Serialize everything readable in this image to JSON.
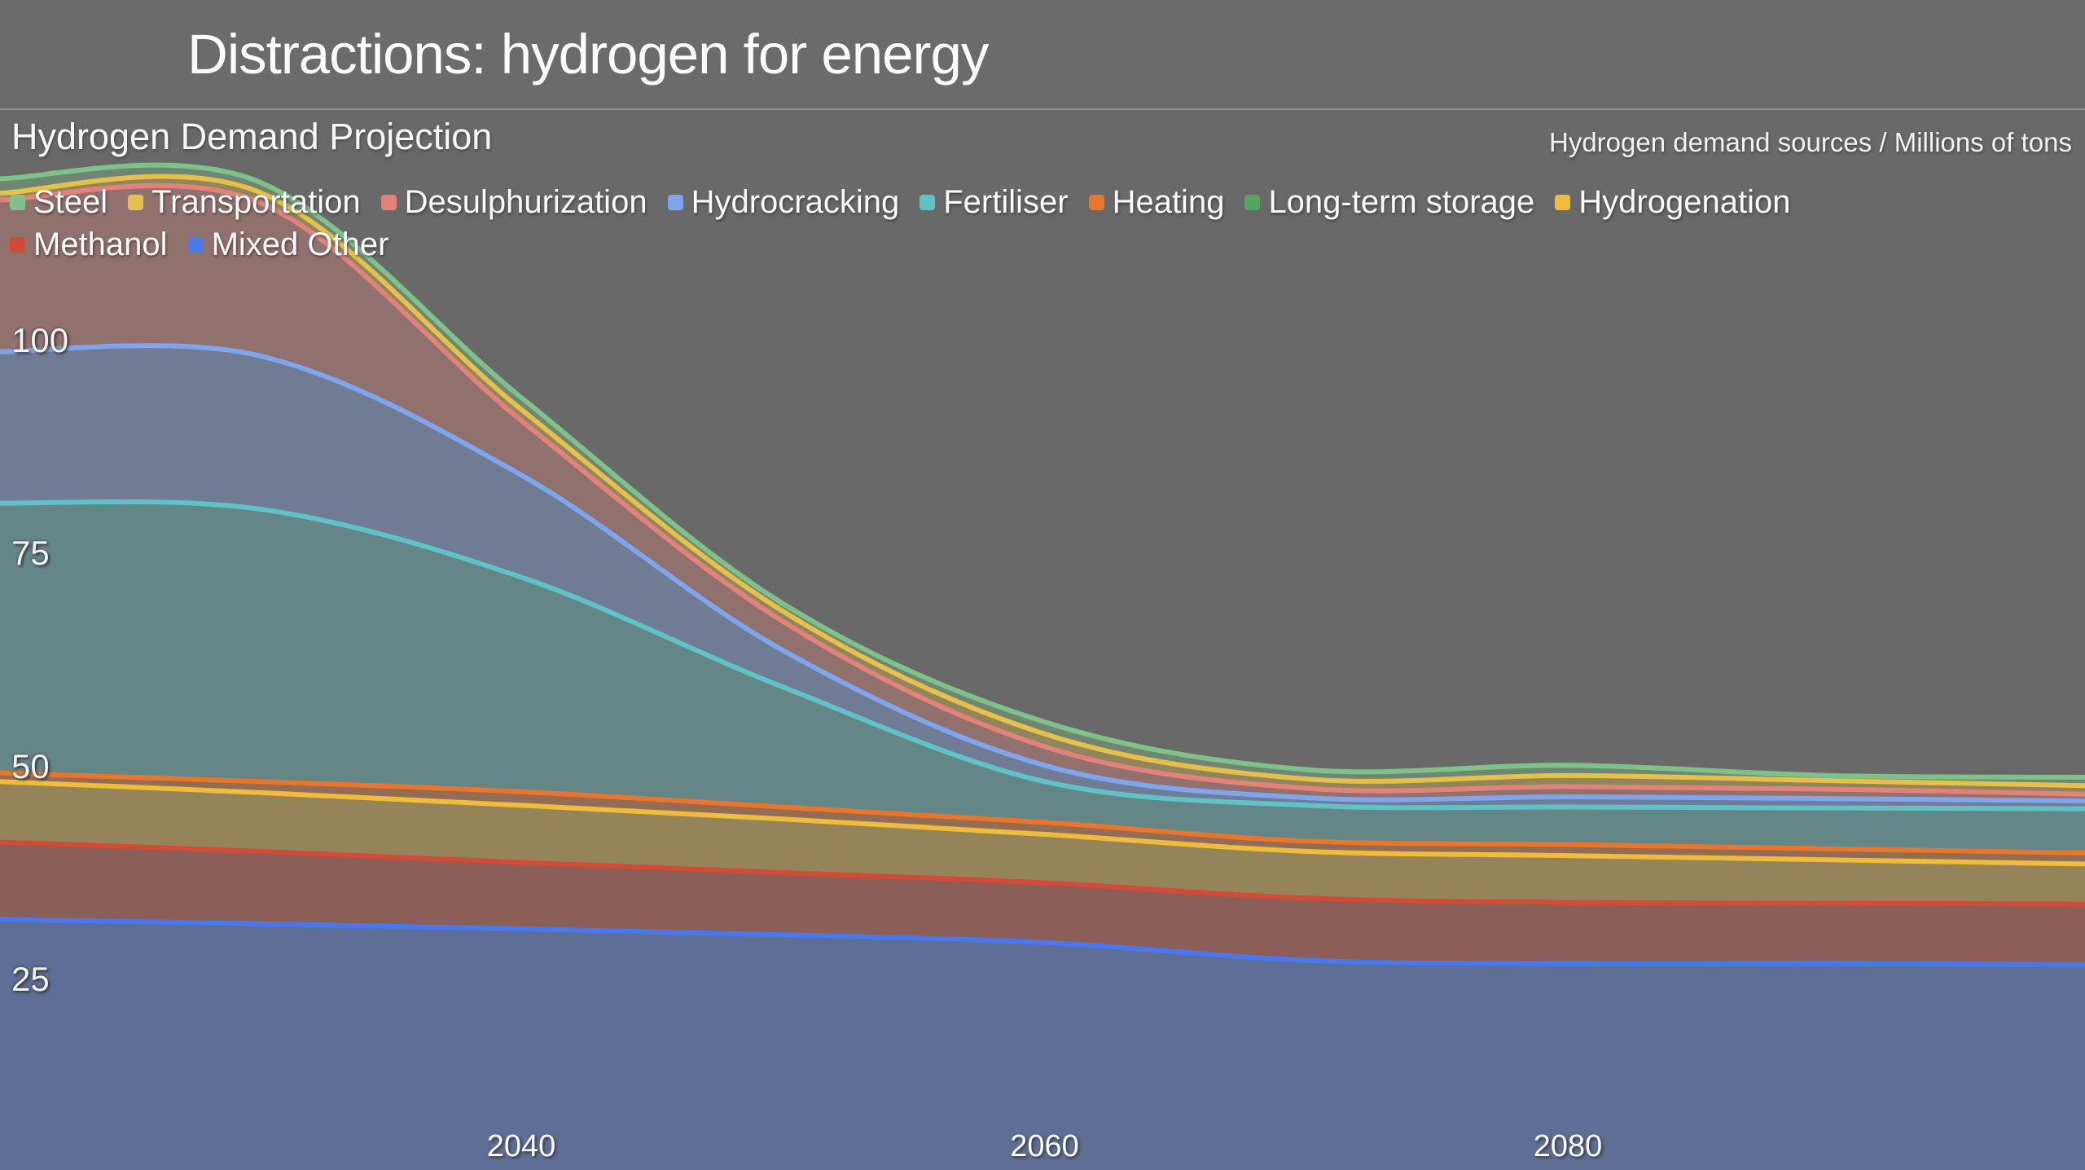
{
  "header": {
    "title": "Distractions: hydrogen for energy"
  },
  "chart_header": {
    "title": "Hydrogen Demand Projection",
    "units_caption": "Hydrogen demand sources / Millions of tons"
  },
  "colors": {
    "slide_background": "#696969",
    "topbar_background": "#6b6b6b",
    "divider": "#9a9a9a",
    "text": "#f5f5f5"
  },
  "chart_data": {
    "type": "area",
    "stacked": true,
    "stack_order": "bottom-to-top",
    "title": "Hydrogen Demand Projection",
    "xlabel": "",
    "ylabel": "Millions of tons",
    "grid": false,
    "legend_position": "top-left",
    "x": [
      2020,
      2030,
      2040,
      2050,
      2060,
      2070,
      2080,
      2090,
      2100
    ],
    "xlim": [
      2020,
      2100
    ],
    "ylim": [
      0,
      125
    ],
    "x_ticks": [
      "2040",
      "2060",
      "2080"
    ],
    "x_tick_years": [
      2040,
      2060,
      2080
    ],
    "y_ticks": [
      100,
      75,
      50,
      25
    ],
    "area_fill_opacity": 0.33,
    "series": [
      {
        "name": "Mixed Other",
        "color": "#4A78EE",
        "values": [
          32.3,
          31.8,
          31.2,
          30.5,
          29.6,
          27.5,
          27.1,
          27.1,
          27.0
        ]
      },
      {
        "name": "Methanol",
        "color": "#D24B38",
        "values": [
          9.1,
          8.5,
          7.8,
          7.3,
          7.0,
          7.3,
          7.2,
          7.1,
          7.1
        ]
      },
      {
        "name": "Hydrogenation",
        "color": "#EFBC3C",
        "values": [
          7.1,
          6.9,
          6.7,
          6.3,
          5.7,
          5.5,
          5.5,
          5.1,
          4.7
        ]
      },
      {
        "name": "Long-term storage",
        "color": "#57A45F",
        "values": [
          0,
          0,
          0,
          0,
          0,
          0,
          0,
          0,
          0
        ]
      },
      {
        "name": "Heating",
        "color": "#E8762C",
        "values": [
          1.0,
          1.3,
          1.6,
          1.4,
          1.4,
          1.2,
          1.3,
          1.3,
          1.3
        ]
      },
      {
        "name": "Fertiliser",
        "color": "#5EC2C6",
        "values": [
          31.7,
          32.0,
          25.2,
          14.1,
          4.8,
          4.2,
          4.4,
          4.8,
          5.2
        ]
      },
      {
        "name": "Hydrocracking",
        "color": "#7FA5EC",
        "values": [
          17.8,
          18.0,
          12.0,
          4.3,
          1.9,
          0.9,
          1.2,
          1.1,
          0.9
        ]
      },
      {
        "name": "Desulphurization",
        "color": "#E2827A",
        "values": [
          17.8,
          18.0,
          6.4,
          3.4,
          2.2,
          1.1,
          1.2,
          1.1,
          0.8
        ]
      },
      {
        "name": "Transportation",
        "color": "#E5C04A",
        "values": [
          0.8,
          1.2,
          1.3,
          1.2,
          1.5,
          1.1,
          1.3,
          1.0,
          1.0
        ]
      },
      {
        "name": "Steel",
        "color": "#7FC289",
        "values": [
          1.7,
          1.2,
          1.4,
          0.9,
          1.4,
          1.1,
          1.2,
          0.6,
          1.0
        ]
      }
    ],
    "legend_order": [
      "Steel",
      "Transportation",
      "Desulphurization",
      "Hydrocracking",
      "Fertiliser",
      "Heating",
      "Long-term storage",
      "Hydrogenation",
      "Methanol",
      "Mixed Other"
    ],
    "legend_row_break": 8
  }
}
